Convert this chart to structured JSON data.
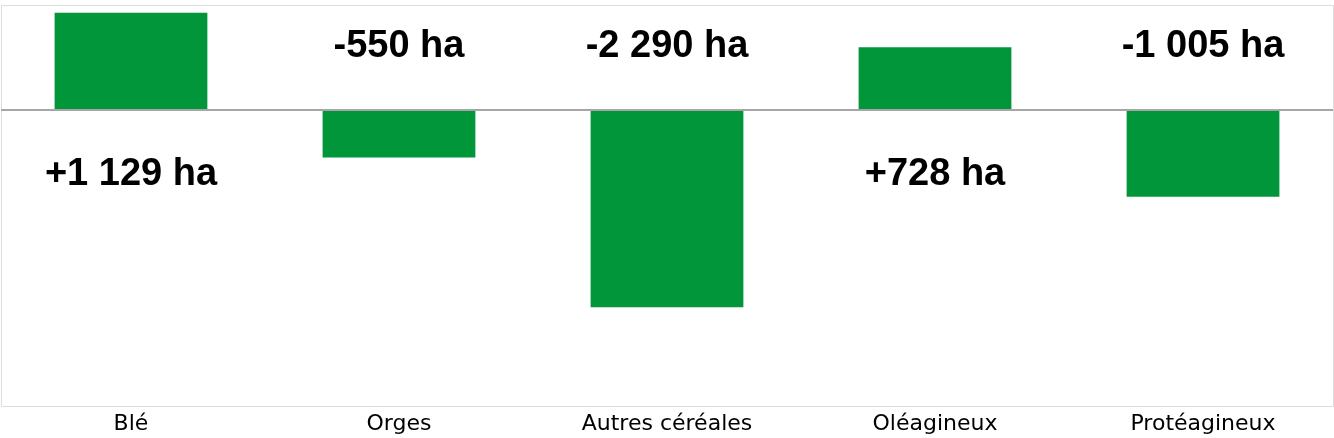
{
  "chart_data": {
    "type": "bar",
    "categories": [
      "Blé",
      "Orges",
      "Autres céréales",
      "Oléagineux",
      "Protéagineux"
    ],
    "values": [
      1129,
      -550,
      -2290,
      728,
      -1005
    ],
    "value_labels": [
      "+1 129 ha",
      "-550 ha",
      "-2 290 ha",
      "+728 ha",
      "-1 005 ha"
    ],
    "color": "#009639"
  }
}
